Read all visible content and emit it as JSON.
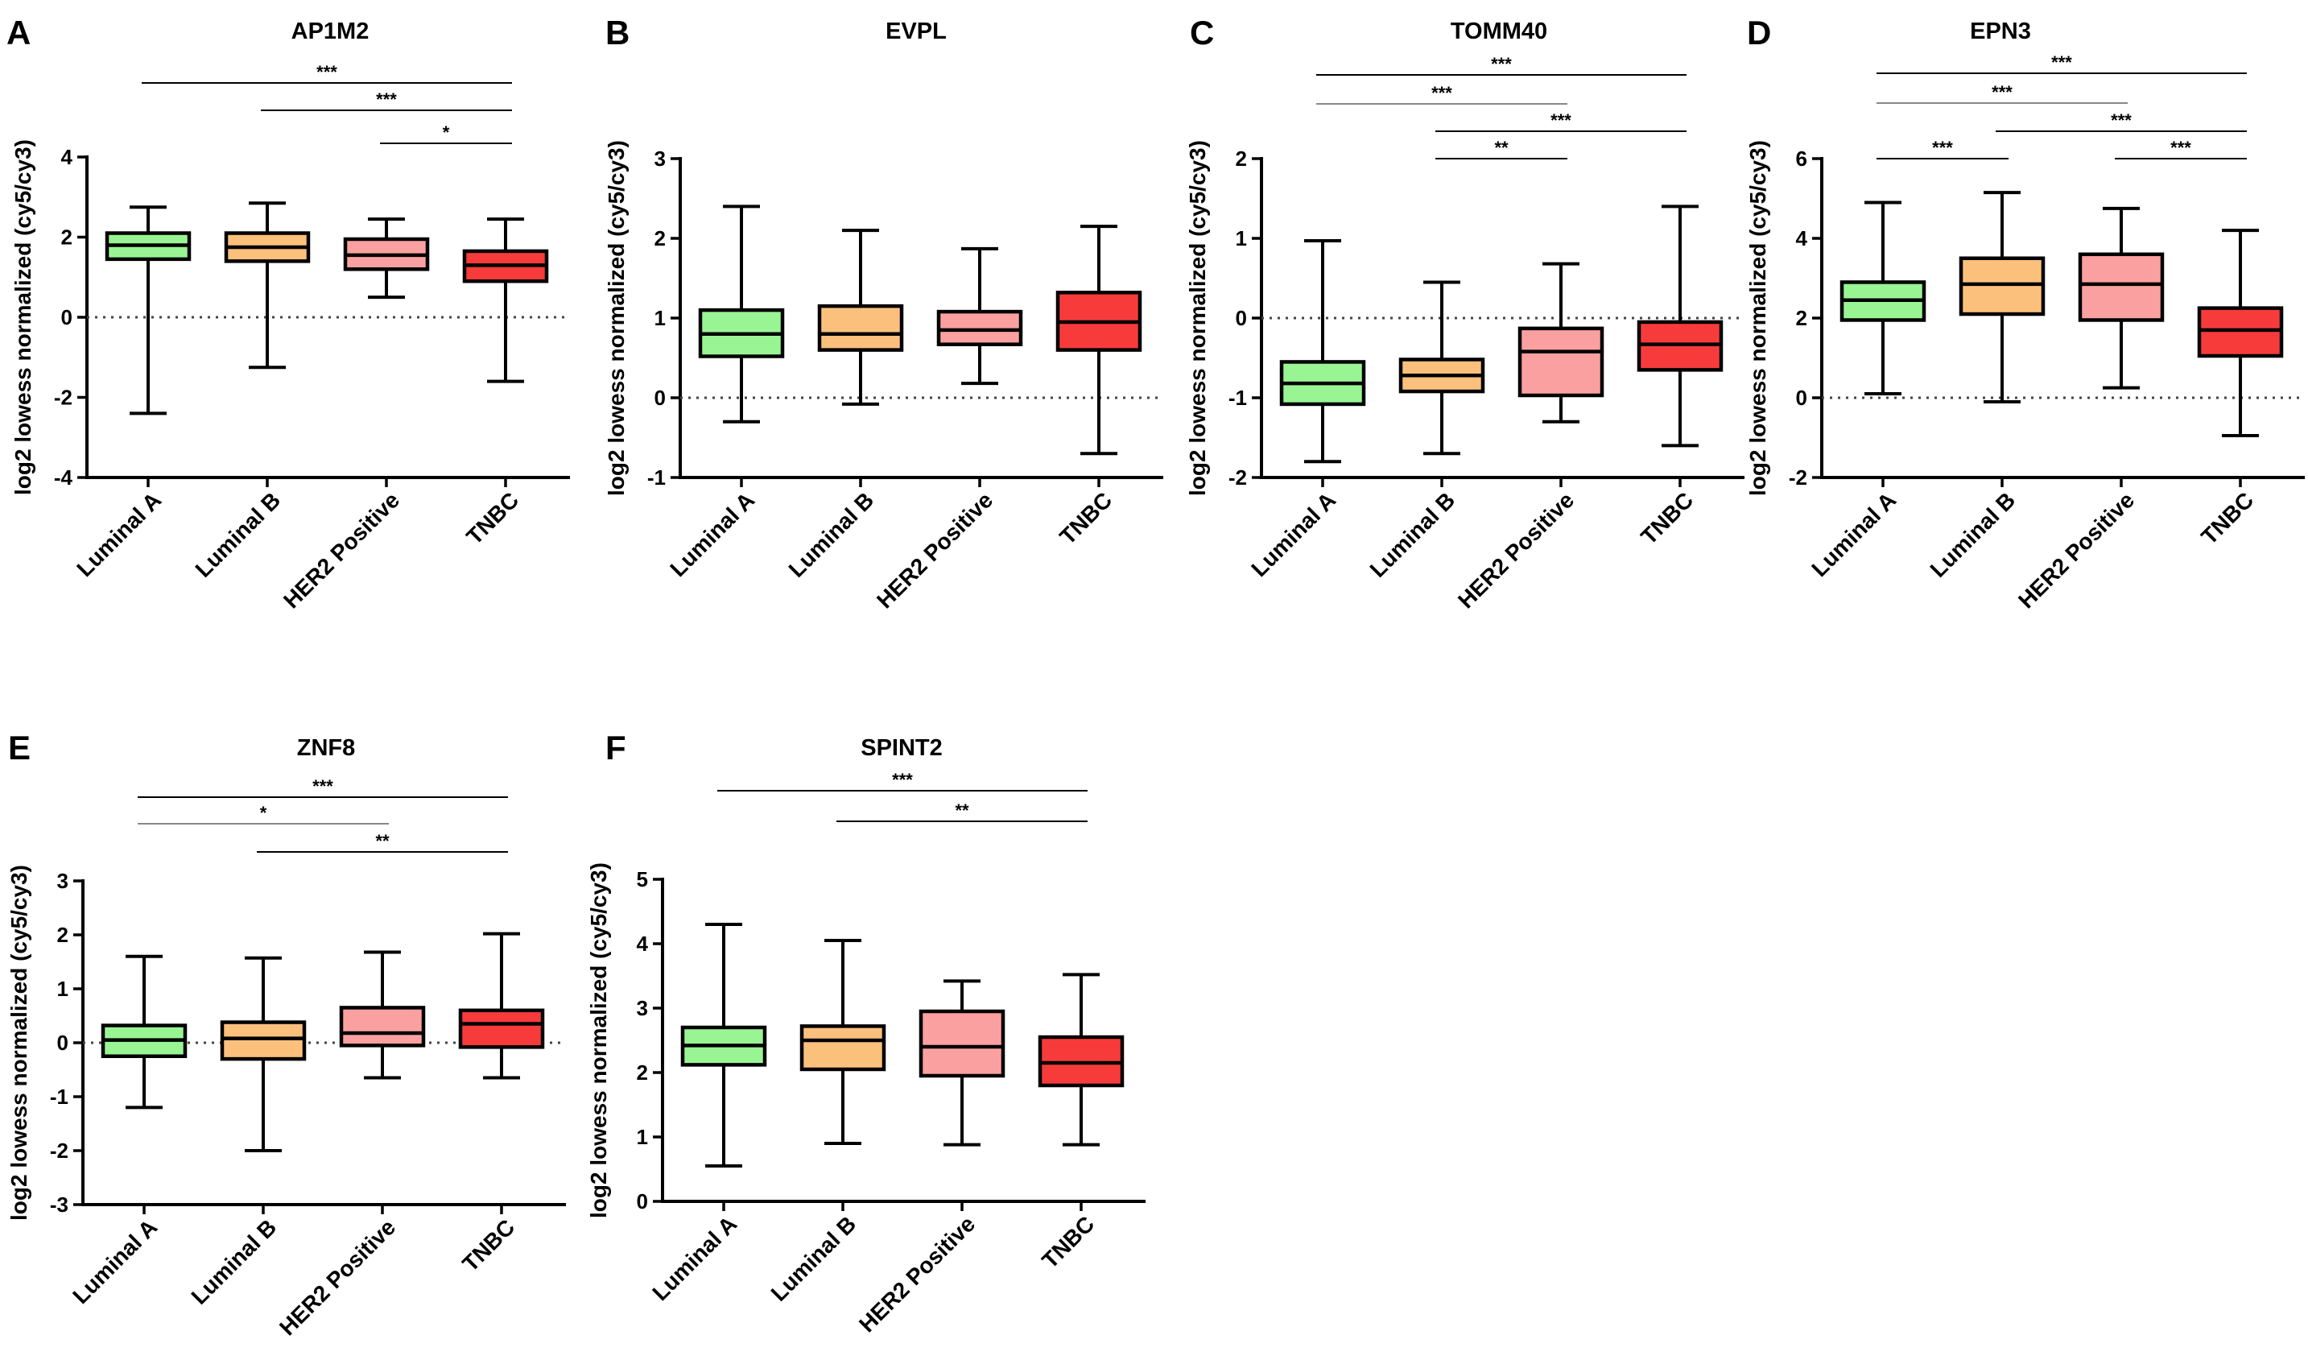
{
  "categories": [
    "Luminal A",
    "Luminal B",
    "HER2 Positive",
    "TNBC"
  ],
  "colors": [
    "#99f593",
    "#fcc07d",
    "#fba0a0",
    "#f73b3b"
  ],
  "chart_data": [
    {
      "type": "box",
      "panel_label": "A",
      "title": "AP1M2",
      "ylabel": "log2 lowess normalized (cy5/cy3)",
      "ylim": [
        -4,
        4
      ],
      "yticks": [
        -4,
        -2,
        0,
        2,
        4
      ],
      "ytick_labels": [
        "-4",
        "-2",
        "0",
        "2",
        "4"
      ],
      "baseline": 0,
      "boxes": [
        {
          "min": -2.4,
          "q1": 1.45,
          "median": 1.8,
          "q3": 2.1,
          "max": 2.75
        },
        {
          "min": -1.25,
          "q1": 1.4,
          "median": 1.75,
          "q3": 2.1,
          "max": 2.85
        },
        {
          "min": 0.5,
          "q1": 1.2,
          "median": 1.55,
          "q3": 1.95,
          "max": 2.45
        },
        {
          "min": -1.6,
          "q1": 0.9,
          "median": 1.3,
          "q3": 1.65,
          "max": 2.45
        }
      ],
      "significance": [
        {
          "from": 0,
          "to": 3,
          "label": "***"
        },
        {
          "from": 1,
          "to": 3,
          "label": "***"
        },
        {
          "from": 2,
          "to": 3,
          "label": "*"
        }
      ]
    },
    {
      "type": "box",
      "panel_label": "B",
      "title": "EVPL",
      "ylabel": "log2 lowess normalized (cy5/cy3)",
      "ylim": [
        -1,
        3
      ],
      "yticks": [
        -1,
        0,
        1,
        2,
        3
      ],
      "ytick_labels": [
        "-1",
        "0",
        "1",
        "2",
        "3"
      ],
      "baseline": 0,
      "boxes": [
        {
          "min": -0.3,
          "q1": 0.52,
          "median": 0.8,
          "q3": 1.1,
          "max": 2.4
        },
        {
          "min": -0.08,
          "q1": 0.6,
          "median": 0.8,
          "q3": 1.15,
          "max": 2.1
        },
        {
          "min": 0.18,
          "q1": 0.67,
          "median": 0.85,
          "q3": 1.08,
          "max": 1.87
        },
        {
          "min": -0.7,
          "q1": 0.6,
          "median": 0.95,
          "q3": 1.32,
          "max": 2.15
        }
      ],
      "significance": []
    },
    {
      "type": "box",
      "panel_label": "C",
      "title": "TOMM40",
      "ylabel": "log2 lowess normalized (cy5/cy3)",
      "ylim": [
        -2,
        2
      ],
      "yticks": [
        -2,
        -1,
        0,
        1,
        2
      ],
      "ytick_labels": [
        "-2",
        "-1",
        "0",
        "1",
        "2"
      ],
      "baseline": 0,
      "boxes": [
        {
          "min": -1.8,
          "q1": -1.08,
          "median": -0.82,
          "q3": -0.55,
          "max": 0.97
        },
        {
          "min": -1.7,
          "q1": -0.92,
          "median": -0.72,
          "q3": -0.52,
          "max": 0.45
        },
        {
          "min": -1.3,
          "q1": -0.97,
          "median": -0.42,
          "q3": -0.13,
          "max": 0.68
        },
        {
          "min": -1.6,
          "q1": -0.65,
          "median": -0.33,
          "q3": -0.05,
          "max": 1.4
        }
      ],
      "significance": [
        {
          "from": 0,
          "to": 3,
          "label": "***"
        },
        {
          "from": 0,
          "to": 2,
          "label": "***"
        },
        {
          "from": 1,
          "to": 3,
          "label": "***"
        },
        {
          "from": 1,
          "to": 2,
          "label": "**"
        }
      ]
    },
    {
      "type": "box",
      "panel_label": "D",
      "title": "EPN3",
      "ylabel": "log2 lowess normalized (cy5/cy3)",
      "ylim": [
        -2,
        6
      ],
      "yticks": [
        -2,
        0,
        2,
        4,
        6
      ],
      "ytick_labels": [
        "-2",
        "0",
        "2",
        "4",
        "6"
      ],
      "baseline": 0,
      "boxes": [
        {
          "min": 0.1,
          "q1": 1.95,
          "median": 2.45,
          "q3": 2.9,
          "max": 4.9
        },
        {
          "min": -0.1,
          "q1": 2.1,
          "median": 2.85,
          "q3": 3.5,
          "max": 5.15
        },
        {
          "min": 0.25,
          "q1": 1.95,
          "median": 2.85,
          "q3": 3.6,
          "max": 4.75
        },
        {
          "min": -0.95,
          "q1": 1.05,
          "median": 1.7,
          "q3": 2.25,
          "max": 4.2
        }
      ],
      "significance": [
        {
          "from": 0,
          "to": 3,
          "label": "***"
        },
        {
          "from": 0,
          "to": 2,
          "label": "***"
        },
        {
          "from": 1,
          "to": 3,
          "label": "***"
        },
        {
          "from": 0,
          "to": 1,
          "label": "***"
        },
        {
          "from": 2,
          "to": 3,
          "label": "***"
        }
      ]
    },
    {
      "type": "box",
      "panel_label": "E",
      "title": "ZNF8",
      "ylabel": "log2 lowess normalized (cy5/cy3)",
      "ylim": [
        -3,
        3
      ],
      "yticks": [
        -3,
        -2,
        -1,
        0,
        1,
        2,
        3
      ],
      "ytick_labels": [
        "-3",
        "-2",
        "-1",
        "0",
        "1",
        "2",
        "3"
      ],
      "baseline": 0,
      "boxes": [
        {
          "min": -1.2,
          "q1": -0.25,
          "median": 0.05,
          "q3": 0.32,
          "max": 1.6
        },
        {
          "min": -2.0,
          "q1": -0.3,
          "median": 0.08,
          "q3": 0.38,
          "max": 1.57
        },
        {
          "min": -0.65,
          "q1": -0.05,
          "median": 0.18,
          "q3": 0.65,
          "max": 1.68
        },
        {
          "min": -0.65,
          "q1": -0.08,
          "median": 0.35,
          "q3": 0.6,
          "max": 2.02
        }
      ],
      "significance": [
        {
          "from": 0,
          "to": 3,
          "label": "***"
        },
        {
          "from": 0,
          "to": 2,
          "label": "*"
        },
        {
          "from": 1,
          "to": 3,
          "label": "**"
        }
      ]
    },
    {
      "type": "box",
      "panel_label": "F",
      "title": "SPINT2",
      "ylabel": "log2 lowess normalized (cy5/cy3)",
      "ylim": [
        0,
        5
      ],
      "yticks": [
        0,
        1,
        2,
        3,
        4,
        5
      ],
      "ytick_labels": [
        "0",
        "1",
        "2",
        "3",
        "4",
        "5"
      ],
      "baseline": null,
      "boxes": [
        {
          "min": 0.55,
          "q1": 2.12,
          "median": 2.42,
          "q3": 2.7,
          "max": 4.3
        },
        {
          "min": 0.9,
          "q1": 2.05,
          "median": 2.5,
          "q3": 2.72,
          "max": 4.05
        },
        {
          "min": 0.88,
          "q1": 1.95,
          "median": 2.4,
          "q3": 2.95,
          "max": 3.42
        },
        {
          "min": 0.88,
          "q1": 1.8,
          "median": 2.15,
          "q3": 2.55,
          "max": 3.52
        }
      ],
      "significance": [
        {
          "from": 0,
          "to": 3,
          "label": "***"
        },
        {
          "from": 1,
          "to": 3,
          "label": "**"
        }
      ]
    }
  ]
}
